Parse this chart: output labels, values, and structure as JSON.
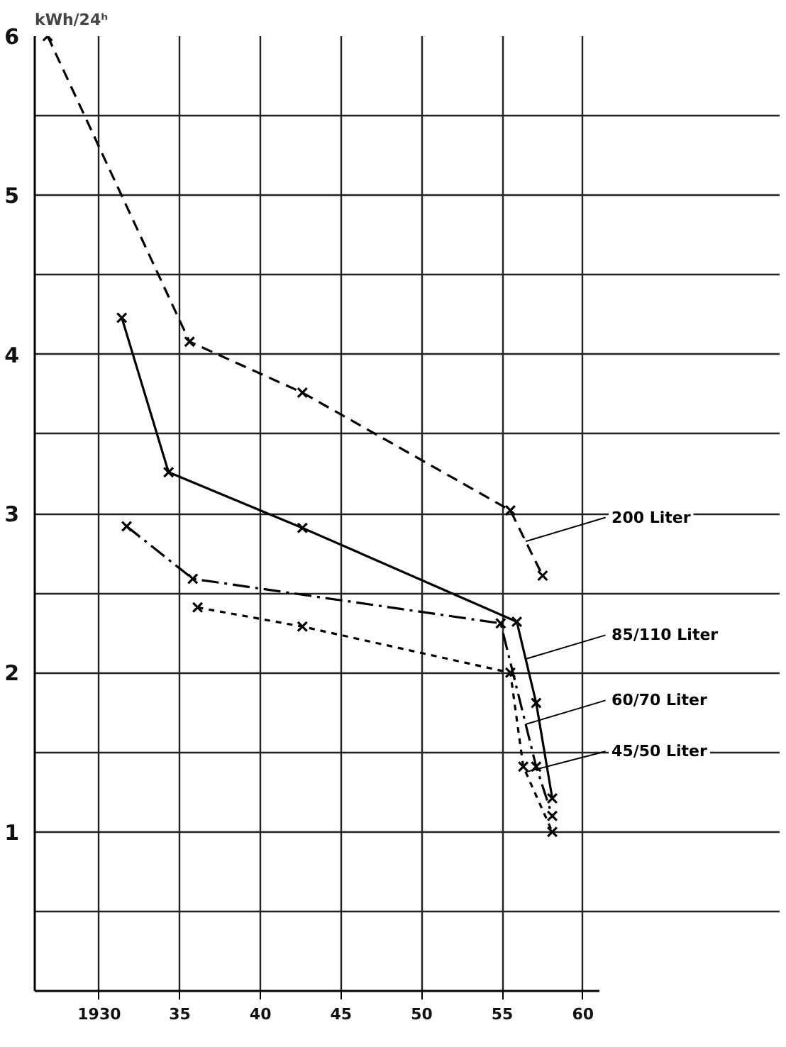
{
  "chart_data": {
    "type": "line",
    "ylabel": "kWh/24ʰ",
    "xlim": [
      1926,
      1961
    ],
    "ylim": [
      0,
      6
    ],
    "xticks": [
      {
        "value": 1930,
        "label": "1930"
      },
      {
        "value": 1935,
        "label": "35"
      },
      {
        "value": 1940,
        "label": "40"
      },
      {
        "value": 1945,
        "label": "45"
      },
      {
        "value": 1950,
        "label": "50"
      },
      {
        "value": 1955,
        "label": "55"
      },
      {
        "value": 1960,
        "label": "60"
      }
    ],
    "yticks": [
      {
        "value": 0,
        "label": null
      },
      {
        "value": 0.5,
        "label": null
      },
      1,
      {
        "value": 1.5,
        "label": null
      },
      2,
      {
        "value": 2.5,
        "label": null
      },
      3,
      {
        "value": 3.5,
        "label": null
      },
      4,
      {
        "value": 4.5,
        "label": null
      },
      5,
      {
        "value": 5.5,
        "label": null
      },
      6
    ],
    "grid": true,
    "marker": "cross",
    "series": [
      {
        "name": "200 Liter",
        "color": "#000000",
        "line_style": "dashed",
        "x": [
          1926.8,
          1935.6,
          1942.6,
          1955.5,
          1957.5
        ],
        "values": [
          6.0,
          4.08,
          3.76,
          3.02,
          2.61
        ]
      },
      {
        "name": "85/110 Liter",
        "color": "#000000",
        "line_style": "solid",
        "x": [
          1931.4,
          1934.3,
          1942.6,
          1955.9,
          1957.1,
          1958.1
        ],
        "values": [
          4.23,
          3.26,
          2.91,
          2.32,
          1.81,
          1.21
        ]
      },
      {
        "name": "60/70 Liter",
        "color": "#000000",
        "line_style": "dashdot",
        "x": [
          1931.7,
          1935.8,
          1954.9,
          1957.1,
          1958.1
        ],
        "values": [
          2.92,
          2.59,
          2.31,
          1.41,
          1.1
        ]
      },
      {
        "name": "45/50 Liter",
        "color": "#000000",
        "line_style": "dotted",
        "x": [
          1936.1,
          1942.6,
          1955.5,
          1956.3,
          1958.1
        ],
        "values": [
          2.41,
          2.29,
          2.0,
          1.41,
          1.0
        ]
      }
    ]
  }
}
